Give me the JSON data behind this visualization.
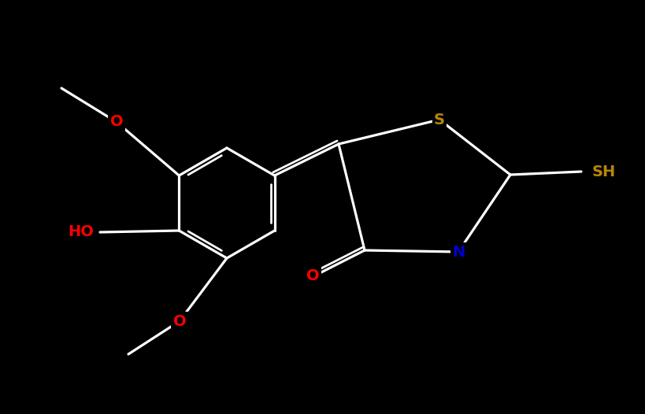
{
  "background_color": "#000000",
  "bond_color": "#ffffff",
  "atom_colors": {
    "O": "#ff0000",
    "N": "#0000cc",
    "S": "#b8860b",
    "C": "#ffffff"
  },
  "figsize": [
    8.19,
    5.26
  ],
  "dpi": 100
}
